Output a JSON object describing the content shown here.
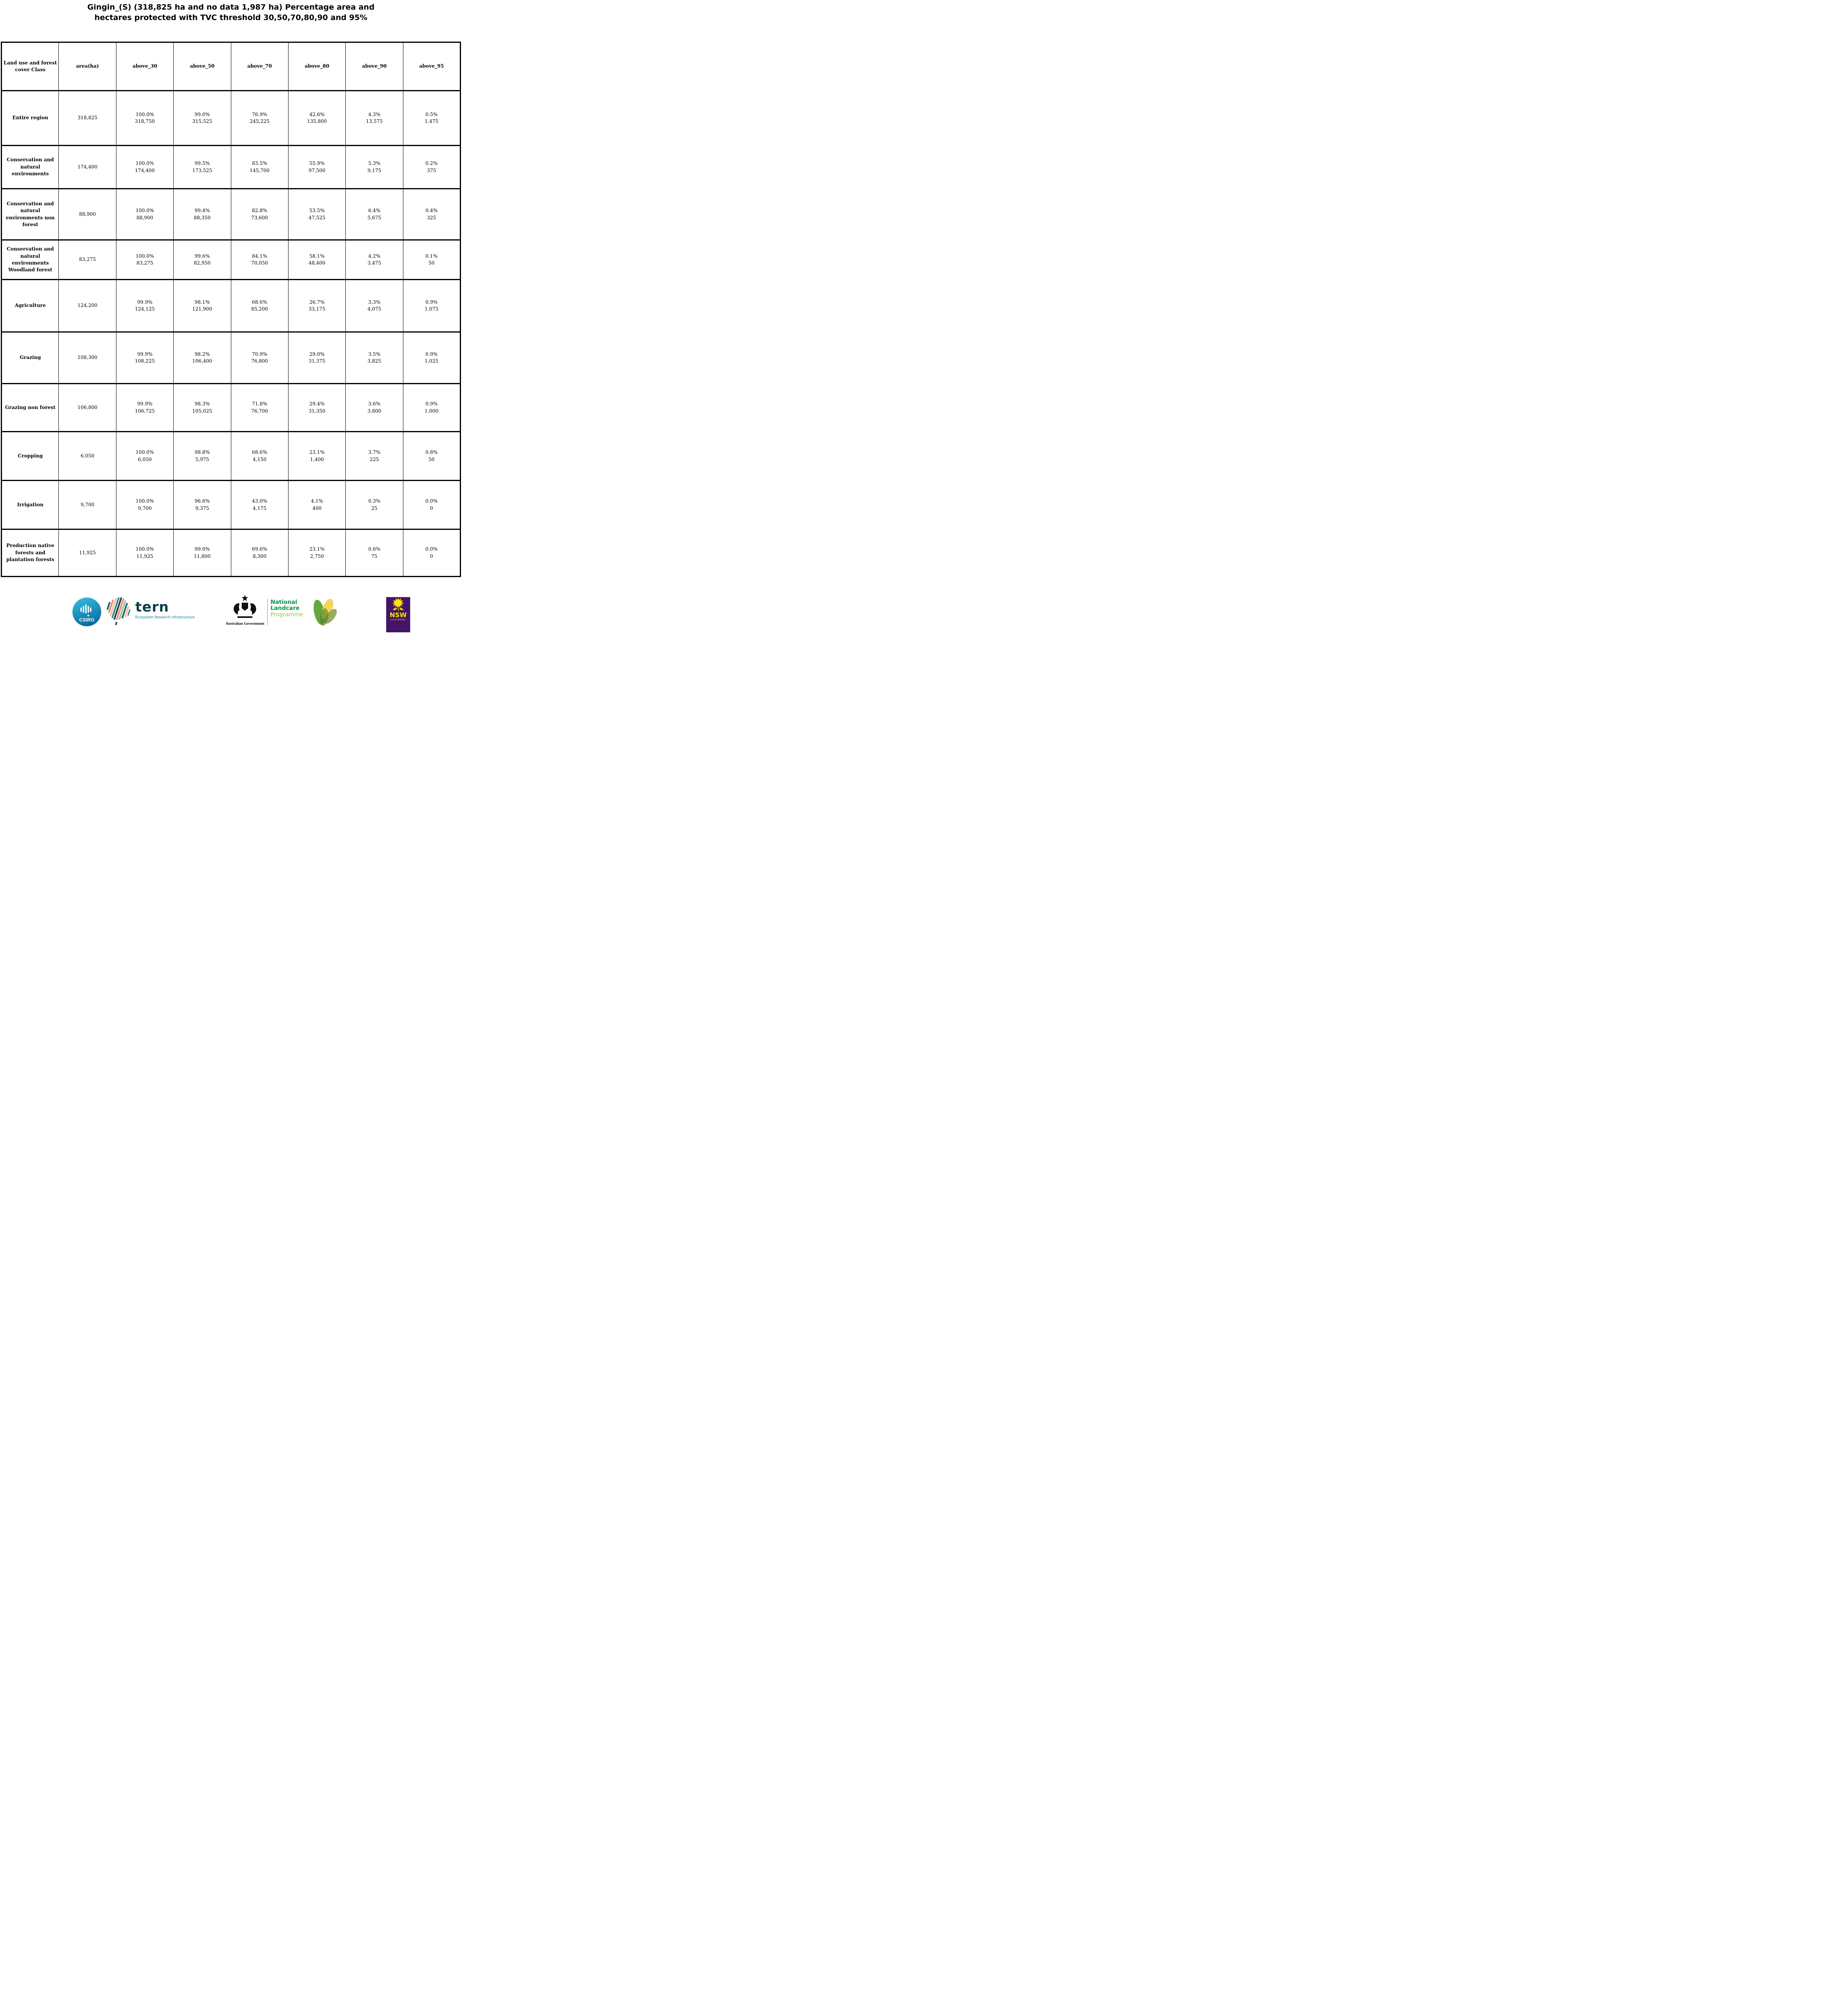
{
  "title": {
    "line1": "Gingin_(S) (318,825 ha and no data 1,987 ha) Percentage area and",
    "line2": "hectares protected with TVC threshold 30,50,70,80,90 and 95%"
  },
  "table": {
    "header": {
      "class_label": "Land use and forest cover Class",
      "area_label": "area(ha)",
      "thresholds": [
        "above_30",
        "above_50",
        "above_70",
        "above_80",
        "above_90",
        "above_95"
      ]
    },
    "rows": [
      {
        "label": "Entire region",
        "area": "318,825",
        "values": [
          {
            "pct": "100.0%",
            "ha": "318,750"
          },
          {
            "pct": "99.0%",
            "ha": "315,525"
          },
          {
            "pct": "76.9%",
            "ha": "245,225"
          },
          {
            "pct": "42.6%",
            "ha": "135,800"
          },
          {
            "pct": "4.3%",
            "ha": "13,575"
          },
          {
            "pct": "0.5%",
            "ha": "1,475"
          }
        ]
      },
      {
        "label": "Conservation and natural environments",
        "area": "174,400",
        "values": [
          {
            "pct": "100.0%",
            "ha": "174,400"
          },
          {
            "pct": "99.5%",
            "ha": "173,525"
          },
          {
            "pct": "83.5%",
            "ha": "145,700"
          },
          {
            "pct": "55.9%",
            "ha": "97,500"
          },
          {
            "pct": "5.3%",
            "ha": "9,175"
          },
          {
            "pct": "0.2%",
            "ha": "375"
          }
        ]
      },
      {
        "label": "Conservation and natural environments non forest",
        "area": "88,900",
        "values": [
          {
            "pct": "100.0%",
            "ha": "88,900"
          },
          {
            "pct": "99.4%",
            "ha": "88,350"
          },
          {
            "pct": "82.8%",
            "ha": "73,600"
          },
          {
            "pct": "53.5%",
            "ha": "47,525"
          },
          {
            "pct": "6.4%",
            "ha": "5,675"
          },
          {
            "pct": "0.4%",
            "ha": "325"
          }
        ]
      },
      {
        "label": "Conservation and natural environments Woodland forest",
        "area": "83,275",
        "values": [
          {
            "pct": "100.0%",
            "ha": "83,275"
          },
          {
            "pct": "99.6%",
            "ha": "82,950"
          },
          {
            "pct": "84.1%",
            "ha": "70,050"
          },
          {
            "pct": "58.1%",
            "ha": "48,400"
          },
          {
            "pct": "4.2%",
            "ha": "3,475"
          },
          {
            "pct": "0.1%",
            "ha": "50"
          }
        ]
      },
      {
        "label": "Agriculture",
        "area": "124,200",
        "values": [
          {
            "pct": "99.9%",
            "ha": "124,125"
          },
          {
            "pct": "98.1%",
            "ha": "121,900"
          },
          {
            "pct": "68.6%",
            "ha": "85,200"
          },
          {
            "pct": "26.7%",
            "ha": "33,175"
          },
          {
            "pct": "3.3%",
            "ha": "4,075"
          },
          {
            "pct": "0.9%",
            "ha": "1,075"
          }
        ]
      },
      {
        "label": "Grazing",
        "area": "108,300",
        "values": [
          {
            "pct": "99.9%",
            "ha": "108,225"
          },
          {
            "pct": "98.2%",
            "ha": "106,400"
          },
          {
            "pct": "70.9%",
            "ha": "76,800"
          },
          {
            "pct": "29.0%",
            "ha": "31,375"
          },
          {
            "pct": "3.5%",
            "ha": "3,825"
          },
          {
            "pct": "0.9%",
            "ha": "1,025"
          }
        ]
      },
      {
        "label": "Grazing non forest",
        "area": "106,800",
        "values": [
          {
            "pct": "99.9%",
            "ha": "106,725"
          },
          {
            "pct": "98.3%",
            "ha": "105,025"
          },
          {
            "pct": "71.8%",
            "ha": "76,700"
          },
          {
            "pct": "29.4%",
            "ha": "31,350"
          },
          {
            "pct": "3.6%",
            "ha": "3,800"
          },
          {
            "pct": "0.9%",
            "ha": "1,000"
          }
        ]
      },
      {
        "label": "Cropping",
        "area": "6,050",
        "values": [
          {
            "pct": "100.0%",
            "ha": "6,050"
          },
          {
            "pct": "98.8%",
            "ha": "5,975"
          },
          {
            "pct": "68.6%",
            "ha": "4,150"
          },
          {
            "pct": "23.1%",
            "ha": "1,400"
          },
          {
            "pct": "3.7%",
            "ha": "225"
          },
          {
            "pct": "0.8%",
            "ha": "50"
          }
        ]
      },
      {
        "label": "Irrigation",
        "area": "9,700",
        "values": [
          {
            "pct": "100.0%",
            "ha": "9,700"
          },
          {
            "pct": "96.6%",
            "ha": "9,375"
          },
          {
            "pct": "43.0%",
            "ha": "4,175"
          },
          {
            "pct": "4.1%",
            "ha": "400"
          },
          {
            "pct": "0.3%",
            "ha": "25"
          },
          {
            "pct": "0.0%",
            "ha": "0"
          }
        ]
      },
      {
        "label": "Production native forests and plantation forests",
        "area": "11,925",
        "values": [
          {
            "pct": "100.0%",
            "ha": "11,925"
          },
          {
            "pct": "99.0%",
            "ha": "11,800"
          },
          {
            "pct": "69.6%",
            "ha": "8,300"
          },
          {
            "pct": "23.1%",
            "ha": "2,750"
          },
          {
            "pct": "0.6%",
            "ha": "75"
          },
          {
            "pct": "0.0%",
            "ha": "0"
          }
        ]
      }
    ]
  },
  "footer": {
    "csiro": {
      "label": "CSIRO",
      "color": "#00a9ce",
      "icon": "csiro-soundwave-icon"
    },
    "tern": {
      "label": "tern",
      "tagline": "Ecosystem Research Infrastructure",
      "color": "#0e3e49",
      "icon": "tern-australia-map-icon"
    },
    "aus_gov": {
      "label": "Australian Government",
      "icon": "australian-coat-of-arms-icon"
    },
    "landcare": {
      "line1": "National",
      "line2": "Landcare",
      "line3": "Programme",
      "color": "#009a44",
      "accent": "#8dc63f",
      "icon": "landcare-leaves-icon"
    },
    "nsw": {
      "label": "NSW",
      "sub": "GOVERNMENT",
      "bg": "#441468",
      "accent": "#ffe600",
      "icon": "nsw-waratah-icon"
    }
  }
}
